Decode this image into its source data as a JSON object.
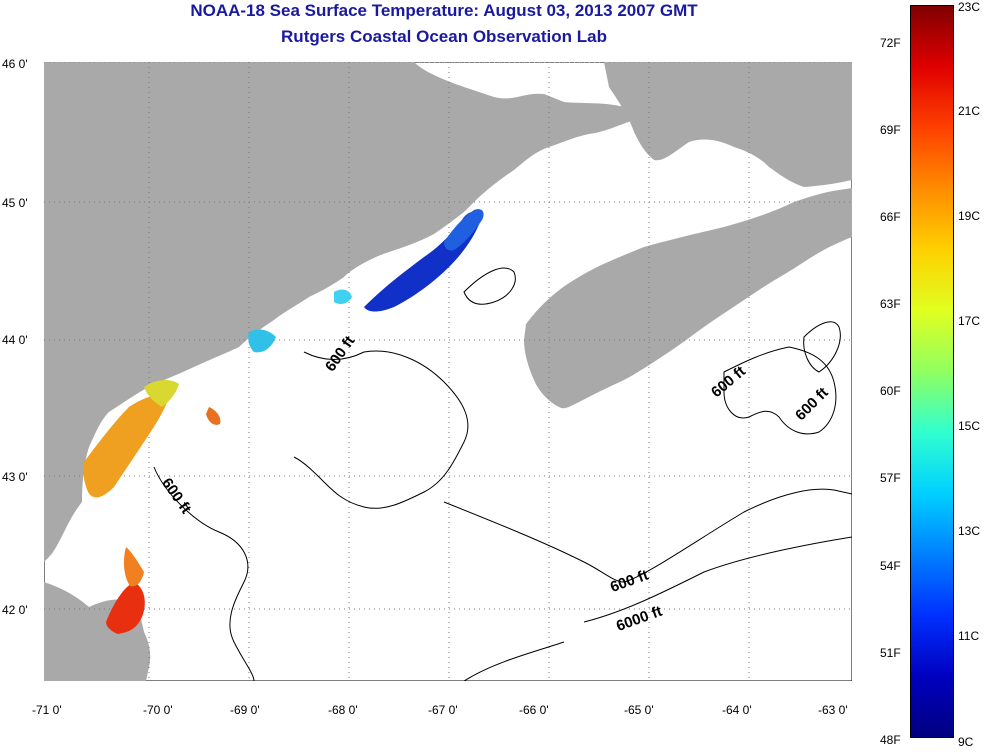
{
  "header": {
    "title": "NOAA-18 Sea Surface Temperature:  August 03, 2013 2007 GMT",
    "subtitle": "Rutgers Coastal Ocean Observation Lab"
  },
  "map": {
    "latitude_labels": [
      "46 0'",
      "45 0'",
      "44 0'",
      "43 0'",
      "42 0'"
    ],
    "longitude_labels": [
      "-71 0'",
      "-70 0'",
      "-69 0'",
      "-68 0'",
      "-67 0'",
      "-66 0'",
      "-65 0'",
      "-64 0'",
      "-63 0'"
    ],
    "contour_labels": [
      "600 ft",
      "600 ft",
      "600 ft",
      "600 ft",
      "6000 ft",
      "600 ft"
    ],
    "land_color": "#a9a9a9",
    "ocean_color": "#ffffff"
  },
  "colorbar": {
    "fahrenheit_labels": [
      "72F",
      "69F",
      "66F",
      "63F",
      "60F",
      "57F",
      "54F",
      "51F",
      "48F"
    ],
    "celsius_labels": [
      "23C",
      "21C",
      "19C",
      "17C",
      "15C",
      "13C",
      "11C",
      "9C"
    ],
    "colors": [
      "#800000",
      "#e00000",
      "#ff4000",
      "#ff8c00",
      "#ffd000",
      "#e0ff20",
      "#90ff60",
      "#30ffd0",
      "#00d0ff",
      "#0080ff",
      "#0030ff",
      "#0000c0",
      "#000080"
    ]
  }
}
